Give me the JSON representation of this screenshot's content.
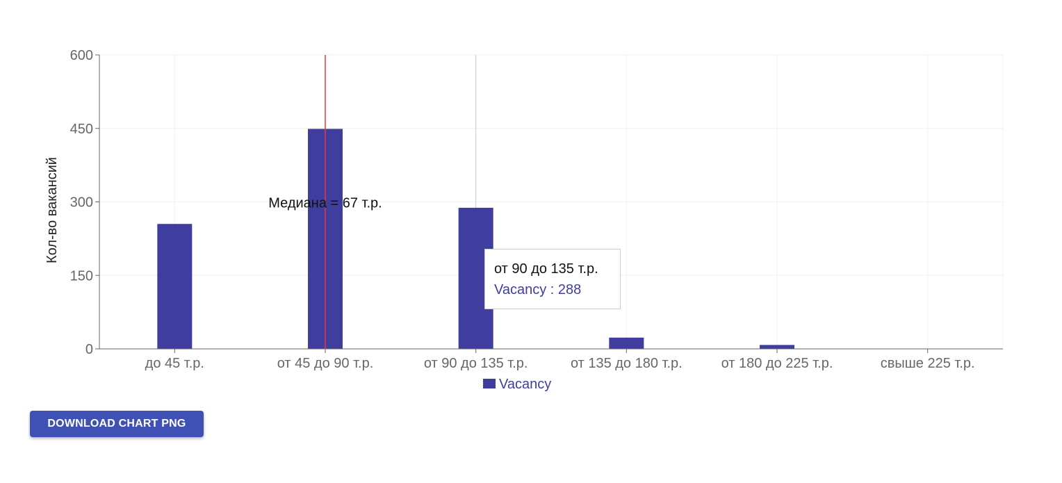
{
  "colors": {
    "bar": "#3f3d9e",
    "median_line": "#e53935",
    "grid": "#f0f0f0",
    "axis": "#666666",
    "cursor_line": "#cccccc",
    "button": "#3f51b5"
  },
  "chart_data": {
    "type": "bar",
    "categories": [
      "до 45 т.р.",
      "от 45 до 90 т.р.",
      "от 90 до 135 т.р.",
      "от 135 до 180 т.р.",
      "от 180 до 225 т.р.",
      "свыше 225 т.р."
    ],
    "series": [
      {
        "name": "Vacancy",
        "values": [
          255,
          449,
          288,
          23,
          8,
          0
        ]
      }
    ],
    "ylabel": "Кол-во вакансий",
    "xlabel": "",
    "ylim": [
      0,
      600
    ],
    "yticks": [
      0,
      150,
      300,
      450,
      600
    ],
    "grid": true,
    "legend": "bottom-center",
    "reference_line": {
      "label": "Медиана = 67 т.р.",
      "category_index": 1
    },
    "active_category_index": 2
  },
  "tooltip": {
    "title": "от 90 до 135 т.р.",
    "value_text": "Vacancy : 288"
  },
  "download_button": {
    "label": "DOWNLOAD CHART PNG"
  }
}
